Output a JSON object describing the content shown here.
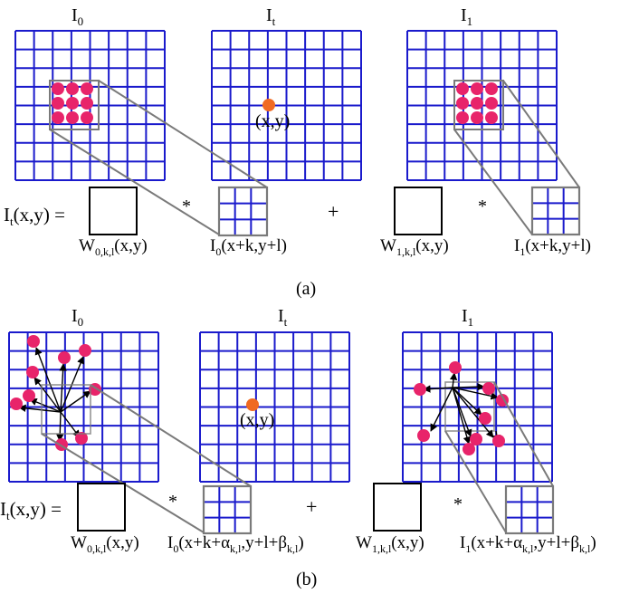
{
  "colors": {
    "grid": "#1a1acc",
    "dot": "#e8246a",
    "target_dot": "#f06a22",
    "connector": "#7a7a7a",
    "arrow": "#000000"
  },
  "panel_a": {
    "caption": "(a)",
    "frame_labels": [
      {
        "main": "I",
        "sub": "0"
      },
      {
        "main": "I",
        "sub": "t"
      },
      {
        "main": "I",
        "sub": "1"
      }
    ],
    "point_label": "(x,y)",
    "lhs": {
      "main": "I",
      "sub": "t",
      "rest": "(x,y) ="
    },
    "op_mul_1": "*",
    "op_plus": "+",
    "op_mul_2": "*",
    "w0": {
      "main": "W",
      "sub": "0,k,l",
      "rest": "(x,y)"
    },
    "p0": {
      "main": "I",
      "sub": "0",
      "rest": "(x+k,y+l)"
    },
    "w1": {
      "main": "W",
      "sub": "1,k,l",
      "rest": "(x,y)"
    },
    "p1": {
      "main": "I",
      "sub": "1",
      "rest": "(x+k,y+l)"
    }
  },
  "panel_b": {
    "caption": "(b)",
    "frame_labels": [
      {
        "main": "I",
        "sub": "0"
      },
      {
        "main": "I",
        "sub": "t"
      },
      {
        "main": "I",
        "sub": "1"
      }
    ],
    "point_label": "(x,y)",
    "lhs": {
      "main": "I",
      "sub": "t",
      "rest": "(x,y) ="
    },
    "op_mul_1": "*",
    "op_plus": "+",
    "op_mul_2": "*",
    "w0": {
      "main": "W",
      "sub": "0,k,l",
      "rest": "(x,y)"
    },
    "p0": {
      "segments": [
        {
          "t": "I"
        },
        {
          "t": "0",
          "sub": true
        },
        {
          "t": "(x+k+α"
        },
        {
          "t": "k,l",
          "sub": true
        },
        {
          "t": ",y+l+β"
        },
        {
          "t": "k,l",
          "sub": true
        },
        {
          "t": ")"
        }
      ]
    },
    "w1": {
      "main": "W",
      "sub": "1,k,l",
      "rest": "(x,y)"
    },
    "p1": {
      "segments": [
        {
          "t": "I"
        },
        {
          "t": "1",
          "sub": true
        },
        {
          "t": "(x+k+α"
        },
        {
          "t": "k,l",
          "sub": true
        },
        {
          "t": ",y+l+β"
        },
        {
          "t": "k,l",
          "sub": true
        },
        {
          "t": ")"
        }
      ]
    }
  }
}
